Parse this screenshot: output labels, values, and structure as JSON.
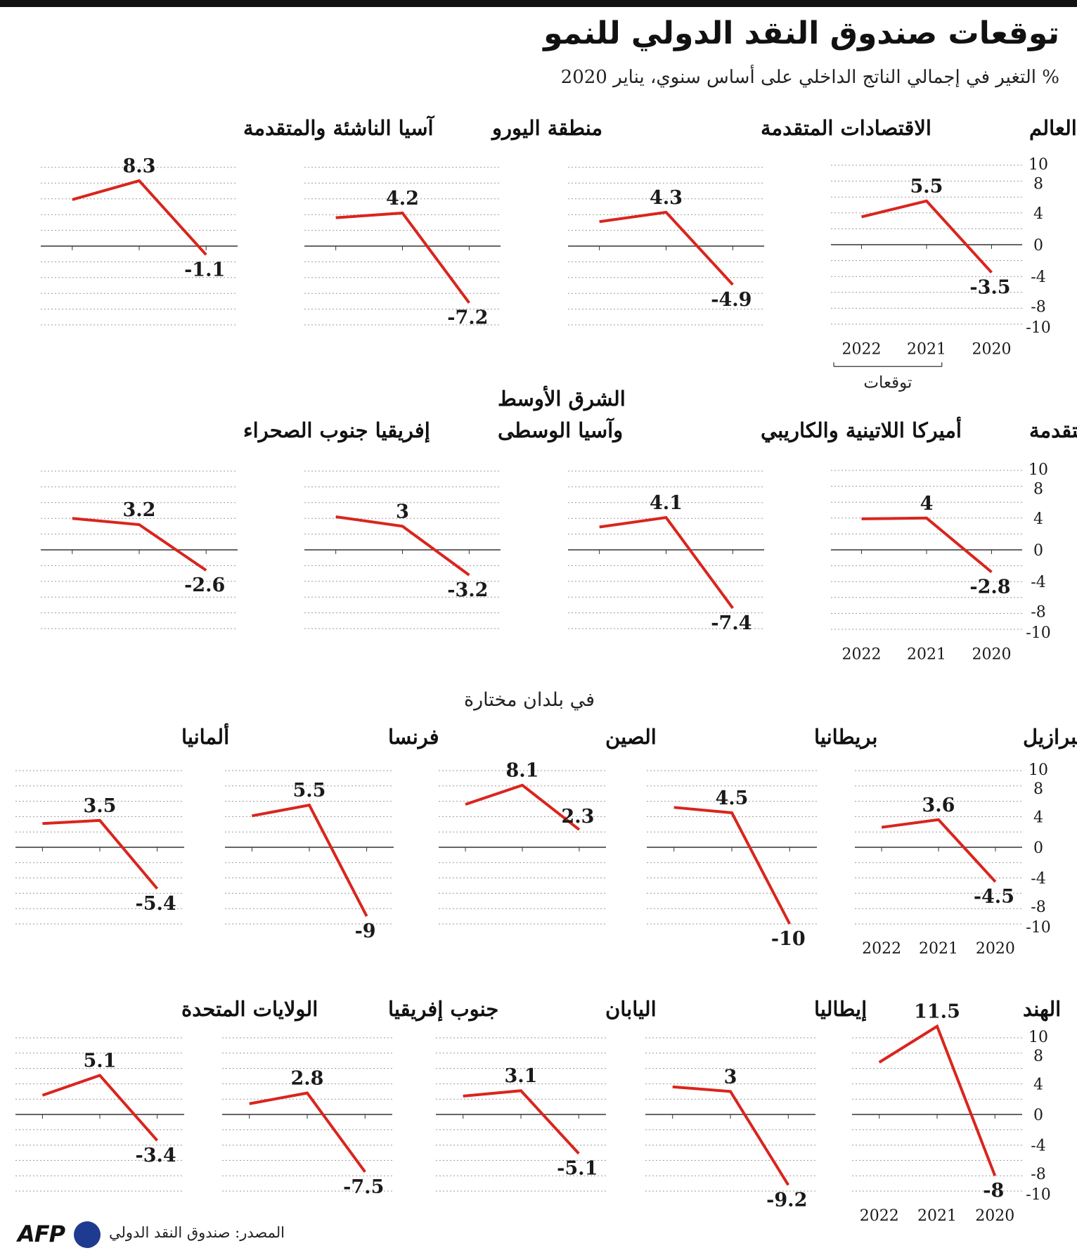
{
  "title": "توقعات صندوق النقد الدولي للنمو",
  "subtitle": "% التغير في إجمالي الناتج الداخلي على أساس سنوي، يناير 2020",
  "section_label": "في بلدان مختارة",
  "source": "المصدر: صندوق النقد الدولي",
  "logo_text": "AFP",
  "forecast_label": "توقعات",
  "colors": {
    "line": "#d9251d",
    "grid": "#9a9a9a",
    "zero": "#333333",
    "afp_dot": "#1f3b8f"
  },
  "chart_data": [
    {
      "type": "line",
      "title": "العالم",
      "x": [
        "2020",
        "2021",
        "2022"
      ],
      "values": [
        -3.5,
        5.5,
        3.5
      ],
      "data_labels": [
        "-3.5",
        "5.5",
        ""
      ],
      "ylim": [
        -10,
        10
      ],
      "yticks": [
        10,
        8,
        4,
        0,
        -4,
        -8,
        -10
      ]
    },
    {
      "type": "line",
      "title": "الاقتصادات المتقدمة",
      "x": [
        "2020",
        "2021",
        "2022"
      ],
      "values": [
        -4.9,
        4.3,
        3.1
      ],
      "data_labels": [
        "-4.9",
        "4.3",
        ""
      ],
      "ylim": [
        -10,
        10
      ]
    },
    {
      "type": "line",
      "title": "منطقة اليورو",
      "x": [
        "2020",
        "2021",
        "2022"
      ],
      "values": [
        -7.2,
        4.2,
        3.6
      ],
      "data_labels": [
        "-7.2",
        "4.2",
        ""
      ],
      "ylim": [
        -10,
        10
      ]
    },
    {
      "type": "line",
      "title": "آسيا الناشئة والمتقدمة",
      "x": [
        "2020",
        "2021",
        "2022"
      ],
      "values": [
        -1.1,
        8.3,
        5.9
      ],
      "data_labels": [
        "-1.1",
        "8.3",
        ""
      ],
      "ylim": [
        -10,
        10
      ]
    },
    {
      "type": "line",
      "title": "أوروبا الناشئة والمتقدمة",
      "x": [
        "2020",
        "2021",
        "2022"
      ],
      "values": [
        -2.8,
        4.0,
        3.9
      ],
      "data_labels": [
        "-2.8",
        "4",
        ""
      ],
      "ylim": [
        -10,
        10
      ],
      "yticks": [
        10,
        8,
        4,
        0,
        -4,
        -8,
        -10
      ]
    },
    {
      "type": "line",
      "title": "أميركا اللاتينية والكاريبي",
      "x": [
        "2020",
        "2021",
        "2022"
      ],
      "values": [
        -7.4,
        4.1,
        2.9
      ],
      "data_labels": [
        "-7.4",
        "4.1",
        ""
      ],
      "ylim": [
        -10,
        10
      ]
    },
    {
      "type": "line",
      "title": "الشرق الأوسط وآسيا الوسطى",
      "x": [
        "2020",
        "2021",
        "2022"
      ],
      "values": [
        -3.2,
        3.0,
        4.2
      ],
      "data_labels": [
        "-3.2",
        "3",
        ""
      ],
      "ylim": [
        -10,
        10
      ]
    },
    {
      "type": "line",
      "title": "إفريقيا جنوب الصحراء",
      "x": [
        "2020",
        "2021",
        "2022"
      ],
      "values": [
        -2.6,
        3.2,
        4.0
      ],
      "data_labels": [
        "-2.6",
        "3.2",
        ""
      ],
      "ylim": [
        -10,
        10
      ]
    },
    {
      "type": "line",
      "title": "البرازيل",
      "x": [
        "2020",
        "2021",
        "2022"
      ],
      "values": [
        -4.5,
        3.6,
        2.6
      ],
      "data_labels": [
        "-4.5",
        "3.6",
        ""
      ],
      "ylim": [
        -10,
        10
      ],
      "yticks": [
        10,
        8,
        4,
        0,
        -4,
        -8,
        -10
      ]
    },
    {
      "type": "line",
      "title": "بريطانيا",
      "x": [
        "2020",
        "2021",
        "2022"
      ],
      "values": [
        -10,
        4.5,
        5.2
      ],
      "data_labels": [
        "-10",
        "4.5",
        ""
      ],
      "ylim": [
        -10,
        10
      ]
    },
    {
      "type": "line",
      "title": "الصين",
      "x": [
        "2020",
        "2021",
        "2022"
      ],
      "values": [
        2.3,
        8.1,
        5.6
      ],
      "data_labels": [
        "2.3",
        "8.1",
        ""
      ],
      "ylim": [
        -10,
        10
      ]
    },
    {
      "type": "line",
      "title": "فرنسا",
      "x": [
        "2020",
        "2021",
        "2022"
      ],
      "values": [
        -9,
        5.5,
        4.1
      ],
      "data_labels": [
        "-9",
        "5.5",
        ""
      ],
      "ylim": [
        -10,
        10
      ]
    },
    {
      "type": "line",
      "title": "ألمانيا",
      "x": [
        "2020",
        "2021",
        "2022"
      ],
      "values": [
        -5.4,
        3.5,
        3.1
      ],
      "data_labels": [
        "-5.4",
        "3.5",
        ""
      ],
      "ylim": [
        -10,
        10
      ]
    },
    {
      "type": "line",
      "title": "الهند",
      "x": [
        "2020",
        "2021",
        "2022"
      ],
      "values": [
        -8,
        11.5,
        6.8
      ],
      "data_labels": [
        "-8",
        "11.5",
        ""
      ],
      "ylim": [
        -10,
        12
      ],
      "yticks": [
        10,
        8,
        4,
        0,
        -4,
        -8,
        -10
      ]
    },
    {
      "type": "line",
      "title": "إيطاليا",
      "x": [
        "2020",
        "2021",
        "2022"
      ],
      "values": [
        -9.2,
        3.0,
        3.6
      ],
      "data_labels": [
        "-9.2",
        "3",
        ""
      ],
      "ylim": [
        -10,
        10
      ]
    },
    {
      "type": "line",
      "title": "اليابان",
      "x": [
        "2020",
        "2021",
        "2022"
      ],
      "values": [
        -5.1,
        3.1,
        2.4
      ],
      "data_labels": [
        "-5.1",
        "3.1",
        ""
      ],
      "ylim": [
        -10,
        10
      ]
    },
    {
      "type": "line",
      "title": "جنوب إفريقيا",
      "x": [
        "2020",
        "2021",
        "2022"
      ],
      "values": [
        -7.5,
        2.8,
        1.4
      ],
      "data_labels": [
        "-7.5",
        "2.8",
        ""
      ],
      "ylim": [
        -10,
        10
      ]
    },
    {
      "type": "line",
      "title": "الولايات المتحدة",
      "x": [
        "2020",
        "2021",
        "2022"
      ],
      "values": [
        -3.4,
        5.1,
        2.5
      ],
      "data_labels": [
        "-3.4",
        "5.1",
        ""
      ],
      "ylim": [
        -10,
        10
      ]
    }
  ]
}
